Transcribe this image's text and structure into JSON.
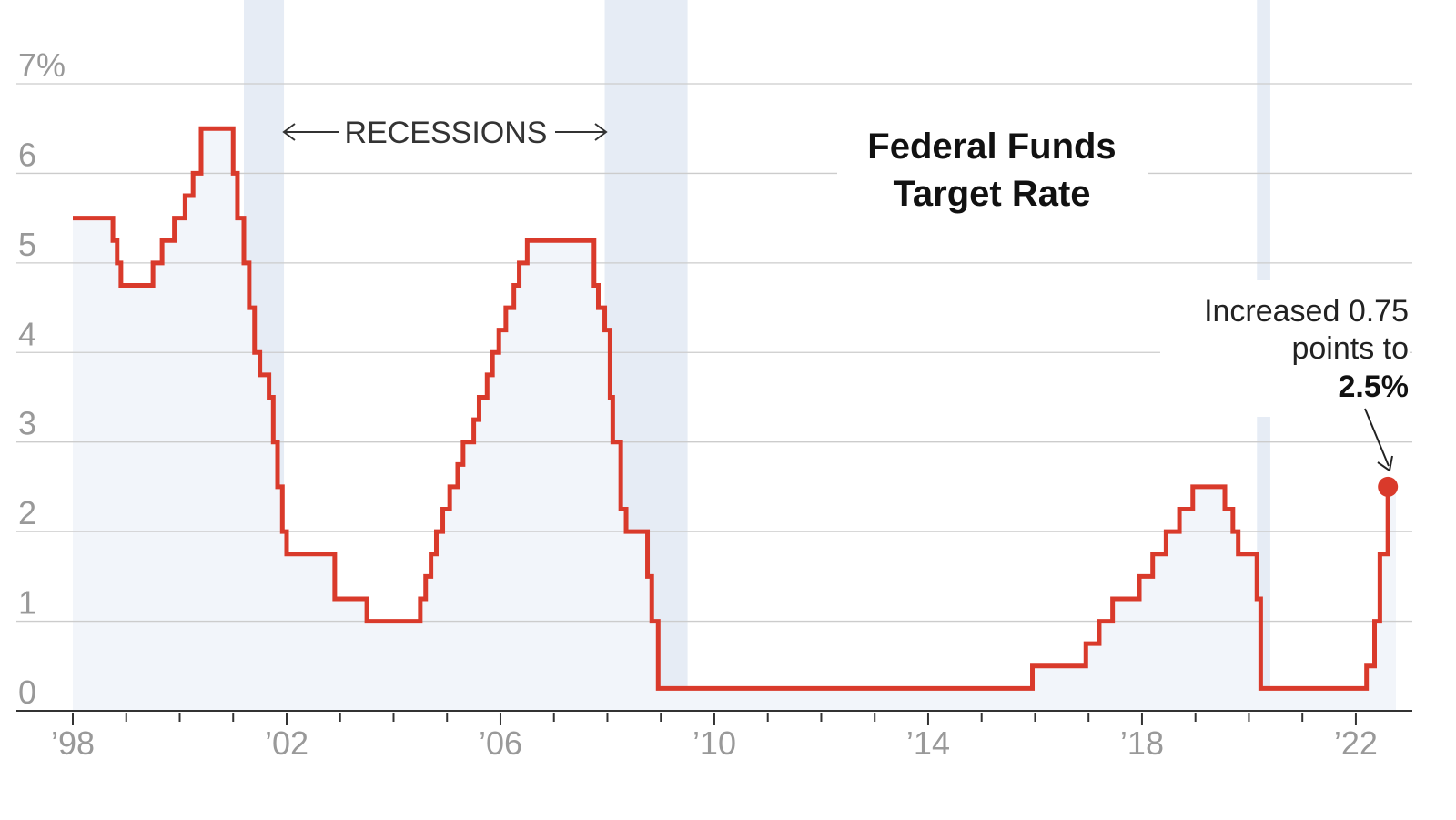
{
  "chart_data": {
    "type": "line",
    "title": "Federal Funds\nTarget Rate",
    "title_lines": [
      "Federal Funds",
      "Target Rate"
    ],
    "xlim": [
      1998,
      2022.75
    ],
    "ylim": [
      0,
      7
    ],
    "y_ticks": [
      0,
      1,
      2,
      3,
      4,
      5,
      6,
      7
    ],
    "y_tick_labels": [
      "0",
      "1",
      "2",
      "3",
      "4",
      "5",
      "6",
      "7%"
    ],
    "x_ticks": [
      1998,
      2002,
      2006,
      2010,
      2014,
      2018,
      2022
    ],
    "x_tick_labels": [
      "’98",
      "’02",
      "’06",
      "’10",
      "’14",
      "’18",
      "’22"
    ],
    "grid": true,
    "recessions_label": "RECESSIONS",
    "recessions": [
      [
        2001.2,
        2001.95
      ],
      [
        2007.95,
        2009.5
      ],
      [
        2020.15,
        2020.4
      ]
    ],
    "series": [
      {
        "color": "#d93a2b",
        "step_points": [
          [
            1998.0,
            5.5
          ],
          [
            1998.75,
            5.25
          ],
          [
            1998.83,
            5.0
          ],
          [
            1998.9,
            4.75
          ],
          [
            1999.5,
            5.0
          ],
          [
            1999.67,
            5.25
          ],
          [
            1999.9,
            5.5
          ],
          [
            2000.1,
            5.75
          ],
          [
            2000.25,
            6.0
          ],
          [
            2000.4,
            6.5
          ],
          [
            2001.0,
            6.0
          ],
          [
            2001.08,
            5.5
          ],
          [
            2001.2,
            5.0
          ],
          [
            2001.3,
            4.5
          ],
          [
            2001.4,
            4.0
          ],
          [
            2001.5,
            3.75
          ],
          [
            2001.67,
            3.5
          ],
          [
            2001.75,
            3.0
          ],
          [
            2001.83,
            2.5
          ],
          [
            2001.92,
            2.0
          ],
          [
            2002.0,
            1.75
          ],
          [
            2002.9,
            1.25
          ],
          [
            2003.5,
            1.0
          ],
          [
            2004.5,
            1.25
          ],
          [
            2004.6,
            1.5
          ],
          [
            2004.7,
            1.75
          ],
          [
            2004.8,
            2.0
          ],
          [
            2004.92,
            2.25
          ],
          [
            2005.05,
            2.5
          ],
          [
            2005.2,
            2.75
          ],
          [
            2005.3,
            3.0
          ],
          [
            2005.5,
            3.25
          ],
          [
            2005.6,
            3.5
          ],
          [
            2005.75,
            3.75
          ],
          [
            2005.85,
            4.0
          ],
          [
            2005.97,
            4.25
          ],
          [
            2006.1,
            4.5
          ],
          [
            2006.25,
            4.75
          ],
          [
            2006.35,
            5.0
          ],
          [
            2006.5,
            5.25
          ],
          [
            2007.75,
            4.75
          ],
          [
            2007.83,
            4.5
          ],
          [
            2007.95,
            4.25
          ],
          [
            2008.05,
            3.5
          ],
          [
            2008.1,
            3.0
          ],
          [
            2008.25,
            2.25
          ],
          [
            2008.35,
            2.0
          ],
          [
            2008.75,
            1.5
          ],
          [
            2008.83,
            1.0
          ],
          [
            2008.95,
            0.25
          ],
          [
            2015.95,
            0.5
          ],
          [
            2016.95,
            0.75
          ],
          [
            2017.2,
            1.0
          ],
          [
            2017.45,
            1.25
          ],
          [
            2017.95,
            1.5
          ],
          [
            2018.2,
            1.75
          ],
          [
            2018.45,
            2.0
          ],
          [
            2018.7,
            2.25
          ],
          [
            2018.95,
            2.5
          ],
          [
            2019.55,
            2.25
          ],
          [
            2019.7,
            2.0
          ],
          [
            2019.8,
            1.75
          ],
          [
            2020.15,
            1.25
          ],
          [
            2020.22,
            0.25
          ],
          [
            2022.2,
            0.5
          ],
          [
            2022.35,
            1.0
          ],
          [
            2022.45,
            1.75
          ],
          [
            2022.6,
            2.5
          ]
        ]
      }
    ],
    "end_point": [
      2022.6,
      2.5
    ],
    "annotation_lines": [
      "Increased 0.75",
      "points to"
    ],
    "annotation_value": "2.5%"
  }
}
